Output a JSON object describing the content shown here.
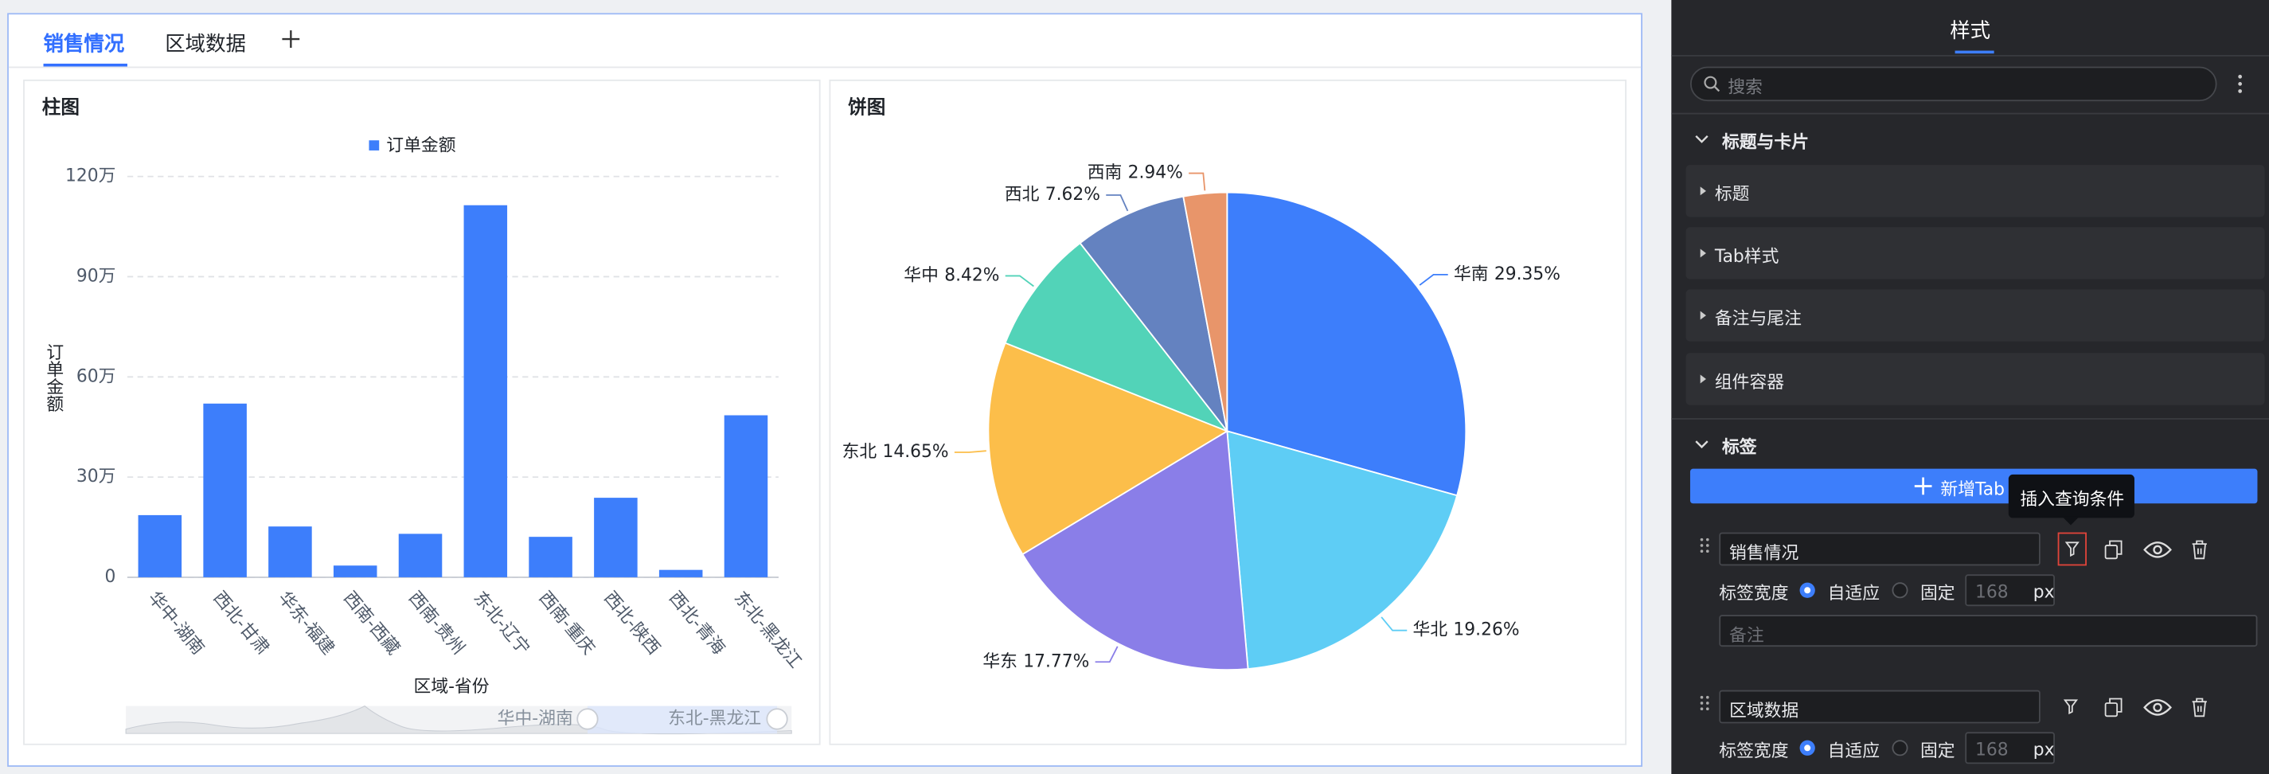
{
  "tabs": [
    "销售情况",
    "区域数据"
  ],
  "chart_data": [
    {
      "type": "bar",
      "title": "柱图",
      "y_label": "订单金额",
      "x_label": "区域-省份",
      "categories": [
        "华中-湖南",
        "西北-甘肃",
        "华东-福建",
        "西南-西藏",
        "西南-贵州",
        "东北-辽宁",
        "西南-重庆",
        "西北-陕西",
        "西北-青海",
        "东北-黑龙江"
      ],
      "series": [
        {
          "name": "订单金额",
          "color": "#3d7efb",
          "values": [
            186000,
            520000,
            152000,
            35000,
            130000,
            1114000,
            121000,
            238000,
            22000,
            485000
          ]
        }
      ],
      "ylim": [
        0,
        1200000
      ],
      "yticks": [
        0,
        {
          "value": 300000,
          "label": "30万"
        },
        {
          "value": 600000,
          "label": "60万"
        },
        {
          "value": 900000,
          "label": "90万"
        },
        {
          "value": 1200000,
          "label": "120万"
        }
      ],
      "grid": true
    },
    {
      "type": "pie",
      "title": "饼图",
      "categories": [
        "华南",
        "华北",
        "华东",
        "东北",
        "华中",
        "西北",
        "西南"
      ],
      "values": [
        29.35,
        19.26,
        17.77,
        14.65,
        8.42,
        7.62,
        2.94
      ],
      "value_labels": [
        "29.35%",
        "19.26%",
        "17.77%",
        "14.65%",
        "8.42%",
        "7.62%",
        "2.94%"
      ],
      "colors": [
        "#3d7efb",
        "#5ecdf5",
        "#8a7ee8",
        "#fcbe4a",
        "#52d3b8",
        "#6482c0",
        "#e8956a"
      ]
    }
  ],
  "panel": {
    "title": "样式",
    "search_placeholder": "搜索",
    "sections": [
      {
        "title": "标题与卡片",
        "items": [
          "标题",
          "Tab样式",
          "备注与尾注",
          "组件容器"
        ]
      },
      {
        "title": "标签"
      }
    ],
    "add_button": "新增Tab",
    "tooltip": "插入查询条件",
    "tab_rows": [
      {
        "name": "销售情况",
        "width_label": "标签宽度",
        "options": [
          "自适应",
          "固定"
        ],
        "fixed_width": 168,
        "unit": "px",
        "note_placeholder": "备注"
      },
      {
        "name": "区域数据",
        "width_label": "标签宽度",
        "options": [
          "自适应",
          "固定"
        ],
        "fixed_width": 168,
        "unit": "px"
      }
    ]
  }
}
